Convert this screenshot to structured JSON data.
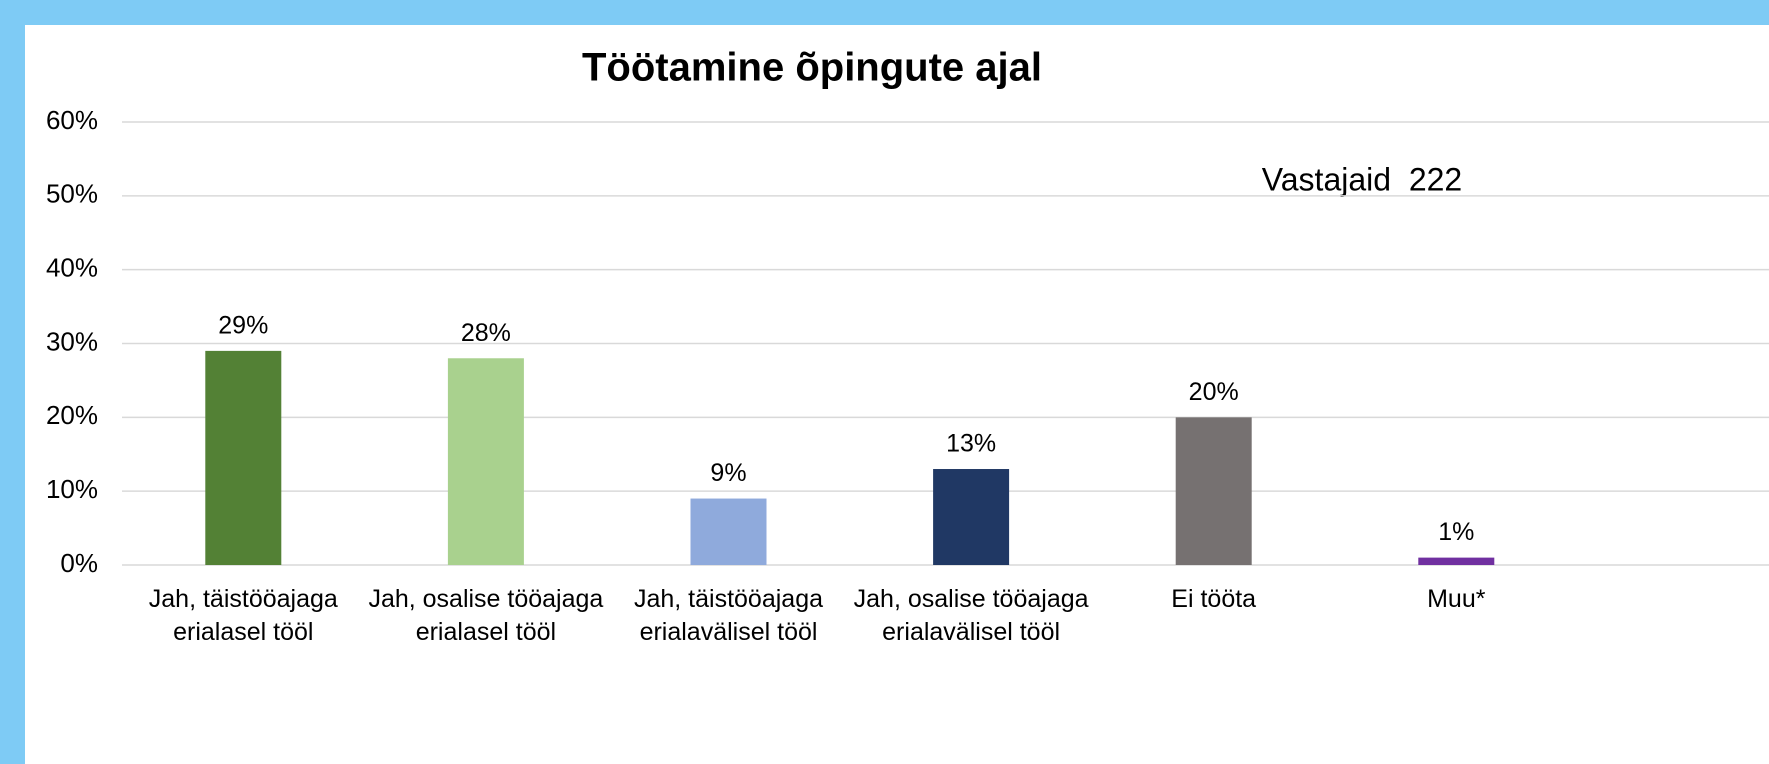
{
  "chart_data": {
    "type": "bar",
    "title": "Töötamine õpingute ajal",
    "annotation": "Vastajaid  222",
    "categories": [
      "Jah, täistööajaga erialasel tööl",
      "Jah, osalise tööajaga erialasel tööl",
      "Jah, täistööajaga erialavälisel tööl",
      "Jah, osalise tööajaga erialavälisel tööl",
      "Ei tööta",
      "Muu*"
    ],
    "values": [
      29,
      28,
      9,
      13,
      20,
      1
    ],
    "value_labels": [
      "29%",
      "28%",
      "9%",
      "13%",
      "20%",
      "1%"
    ],
    "colors": [
      "#538135",
      "#a9d18e",
      "#8faadc",
      "#203864",
      "#767171",
      "#7030a0"
    ],
    "ylim": [
      0,
      60
    ],
    "yticks": [
      {
        "value": 0,
        "label": "0%"
      },
      {
        "value": 10,
        "label": "10%"
      },
      {
        "value": 20,
        "label": "20%"
      },
      {
        "value": 30,
        "label": "30%"
      },
      {
        "value": 40,
        "label": "40%"
      },
      {
        "value": 50,
        "label": "50%"
      },
      {
        "value": 60,
        "label": "60%"
      }
    ],
    "grid": true
  }
}
